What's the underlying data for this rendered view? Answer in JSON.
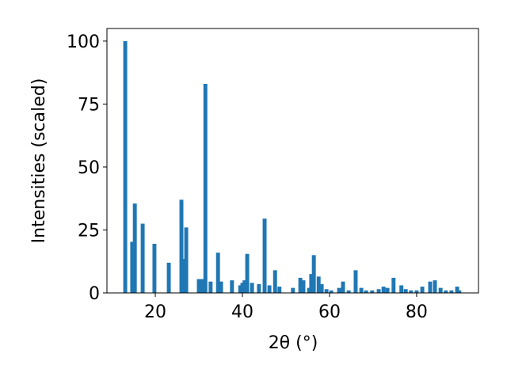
{
  "chart_data": {
    "type": "bar",
    "xlabel": "2θ (°)",
    "ylabel": "Intensities (scaled)",
    "color": "#1f77b4",
    "x": [
      13.1,
      14.7,
      15.3,
      17.1,
      19.8,
      23.1,
      26.0,
      26.5,
      27.1,
      30.0,
      30.7,
      31.5,
      32.7,
      34.4,
      35.1,
      37.6,
      39.5,
      40.0,
      40.5,
      41.1,
      42.2,
      43.8,
      45.1,
      46.2,
      47.5,
      48.5,
      51.6,
      53.3,
      54.0,
      55.3,
      55.8,
      56.4,
      57.5,
      58.2,
      59.3,
      60.4,
      62.2,
      63.1,
      64.4,
      66.0,
      67.3,
      68.4,
      69.8,
      71.3,
      72.4,
      73.3,
      74.7,
      76.5,
      77.5,
      78.7,
      80.0,
      81.3,
      83.1,
      84.2,
      85.5,
      86.7,
      88.0,
      89.3,
      89.8
    ],
    "values": [
      100,
      20.3,
      35.5,
      27.5,
      19.5,
      12,
      37,
      13.5,
      26,
      5.5,
      5.5,
      83,
      4.5,
      16,
      4.5,
      5,
      3,
      4,
      5,
      15.5,
      4,
      3.5,
      29.5,
      3,
      9,
      2.5,
      2,
      6,
      5,
      2,
      7.5,
      15,
      6.5,
      3.5,
      1.5,
      1,
      2,
      4.5,
      1,
      9,
      2,
      1,
      1,
      1.5,
      2.5,
      2,
      6,
      3,
      1.5,
      1,
      1,
      2.5,
      4.5,
      5,
      2,
      1,
      1,
      2.5,
      1
    ],
    "xlim": [
      8.9,
      94.2
    ],
    "ylim": [
      0,
      105
    ],
    "xticks": [
      20,
      40,
      60,
      80
    ],
    "yticks": [
      0,
      25,
      50,
      75,
      100
    ]
  }
}
